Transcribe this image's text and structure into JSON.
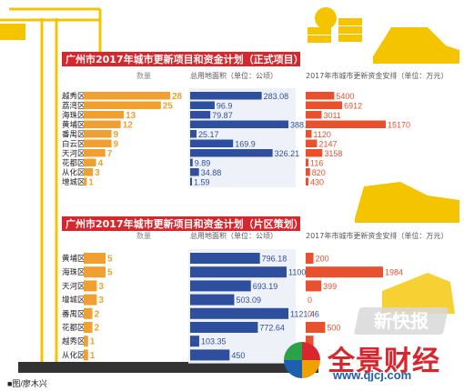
{
  "credit": "■图/廖木兴",
  "watermark": {
    "main": "全景财经",
    "url": "www.qjcj.com",
    "stamp": "新快报"
  },
  "colors": {
    "title_bg": "#d7262c",
    "count": "#f0a030",
    "area": "#2e4f9e",
    "fund": "#e8502e",
    "crane": "#f5c400",
    "header": "#8a8a8a"
  },
  "chart_data": [
    {
      "type": "bar",
      "title": "广州市2017年城市更新项目和资金计划（正式项目）",
      "headers": {
        "count": "数量",
        "area": "总用地面积（单位：公顷）",
        "fund": "2017年市城市更新资金安排（单位：万元）"
      },
      "categories": [
        "越秀区",
        "荔湾区",
        "海珠区",
        "黄埔区",
        "番禺区",
        "白云区",
        "天河区",
        "花都区",
        "从化区",
        "增城区"
      ],
      "series": [
        {
          "name": "数量",
          "values": [
            28,
            25,
            13,
            12,
            9,
            9,
            7,
            4,
            3,
            1
          ],
          "labels": [
            "28",
            "25",
            "13",
            "12",
            "9",
            "9",
            "7",
            "4",
            "3",
            "1"
          ]
        },
        {
          "name": "总用地面积（单位：公顷）",
          "values": [
            283.08,
            96.9,
            79.87,
            388.8,
            25.17,
            169.9,
            326.21,
            9.89,
            34.88,
            1.59
          ],
          "labels": [
            "283.08",
            "96.9",
            "79.87",
            "388.8",
            "25.17",
            "169.9",
            "326.21",
            "9.89",
            "34.88",
            "1.59"
          ]
        },
        {
          "name": "2017年市城市更新资金安排（单位：万元）",
          "values": [
            5400,
            6912,
            3011,
            15170,
            1120,
            2147,
            3158,
            116,
            820,
            430
          ],
          "labels": [
            "5400",
            "6912",
            "3011",
            "15170",
            "1120",
            "2147",
            "3158",
            "116",
            "820",
            "430"
          ]
        }
      ]
    },
    {
      "type": "bar",
      "title": "广州市2017年城市更新项目和资金计划（片区策划）",
      "headers": {
        "count": "数量",
        "area": "总用地面积（单位：公顷）",
        "fund": "2017年市城市更新资金安排（单位：万元）"
      },
      "categories": [
        "黄埔区",
        "海珠区",
        "天河区",
        "增城区",
        "番禺区",
        "花都区",
        "越秀区",
        "从化区"
      ],
      "series": [
        {
          "name": "数量",
          "values": [
            5,
            5,
            3,
            3,
            2,
            2,
            1,
            1
          ],
          "labels": [
            "5",
            "5",
            "3",
            "3",
            "2",
            "2",
            "1",
            "1"
          ]
        },
        {
          "name": "总用地面积（单位：公顷）",
          "values": [
            796.18,
            1100.68,
            693.19,
            503.09,
            1121.46,
            772.64,
            103.35,
            450
          ],
          "labels": [
            "796.18",
            "1100.68",
            "693.19",
            "503.09",
            "1121.46",
            "772.64",
            "103.35",
            "450"
          ]
        },
        {
          "name": "2017年市城市更新资金安排（单位：万元）",
          "values": [
            200,
            1984,
            399,
            0,
            0,
            500,
            200,
            0
          ],
          "labels": [
            "200",
            "1984",
            "399",
            "0",
            "0",
            "500",
            "",
            "0"
          ]
        }
      ]
    }
  ]
}
